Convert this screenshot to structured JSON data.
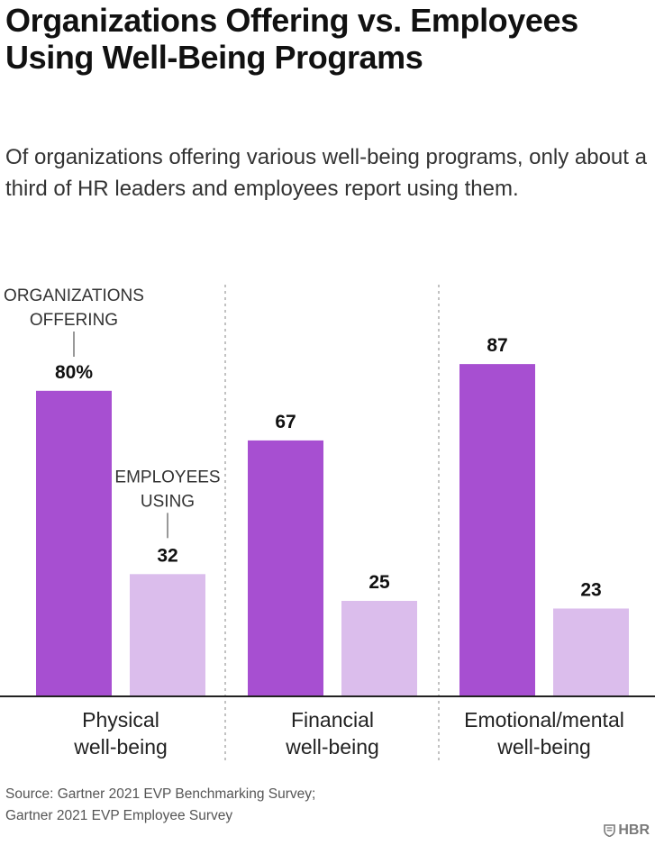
{
  "header": {
    "title": "Organizations Offering vs. Employees Using Well-Being Programs",
    "subtitle": "Of organizations offering various well-being programs, only about a third of HR leaders and employees report using them."
  },
  "chart_data": {
    "type": "bar",
    "title": "Organizations Offering vs. Employees Using Well-Being Programs",
    "categories": [
      [
        "Physical",
        "well-being"
      ],
      [
        "Financial",
        "well-being"
      ],
      [
        "Emotional/mental",
        "well-being"
      ]
    ],
    "series": [
      {
        "name": "ORGANIZATIONS OFFERING",
        "label_lines": [
          "ORGANIZATIONS",
          "OFFERING"
        ],
        "values": [
          80,
          67,
          87
        ],
        "value_labels": [
          "80%",
          "67",
          "87"
        ],
        "color": "#a74fd1"
      },
      {
        "name": "EMPLOYEES USING",
        "label_lines": [
          "EMPLOYEES",
          "USING"
        ],
        "values": [
          32,
          25,
          23
        ],
        "value_labels": [
          "32",
          "25",
          "23"
        ],
        "color": "#dbbdec"
      }
    ],
    "xlabel": "",
    "ylabel": "",
    "unit": "%",
    "ylim": [
      0,
      100
    ],
    "grid": false,
    "legend": "direct labels on first group"
  },
  "footer": {
    "source_lines": [
      "Source: Gartner 2021 EVP Benchmarking Survey;",
      "Gartner 2021 EVP Employee Survey"
    ],
    "brand": "HBR",
    "brand_icon": "hbr-shield-icon"
  }
}
